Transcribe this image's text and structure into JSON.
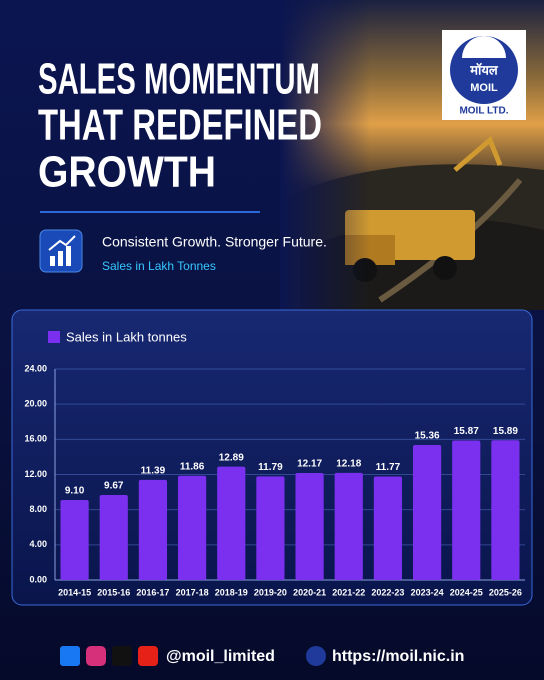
{
  "header": {
    "title_lines": [
      "SALES MOMENTUM",
      "THAT REDEFINED",
      "GROWTH"
    ],
    "tagline": "Consistent Growth. Stronger Future.",
    "subtitle": "Sales in Lakh Tonnes",
    "logo": {
      "hindi": "मॉयल",
      "name": "MOIL",
      "company": "MOIL LTD."
    }
  },
  "chart_data": {
    "type": "bar",
    "categories": [
      "2014-15",
      "2015-16",
      "2016-17",
      "2017-18",
      "2018-19",
      "2019-20",
      "2020-21",
      "2021-22",
      "2022-23",
      "2023-24",
      "2024-25",
      "2025-26"
    ],
    "series": [
      {
        "name": "Sales in Lakh tonnes",
        "color": "#7a30ee",
        "values": [
          9.1,
          9.67,
          11.39,
          11.86,
          12.89,
          11.79,
          12.17,
          12.18,
          11.77,
          15.36,
          15.87,
          15.89
        ],
        "value_labels": [
          "9.10",
          "9.67",
          "11.39",
          "11.86",
          "12.89",
          "11.79",
          "12.17",
          "12.18",
          "11.77",
          "15.36",
          "15.87",
          "15.89"
        ]
      }
    ],
    "ylim": [
      0,
      24
    ],
    "yticks": [
      {
        "value": 0,
        "label": "0.00"
      },
      {
        "value": 4,
        "label": "4.00"
      },
      {
        "value": 8,
        "label": "8.00"
      },
      {
        "value": 12,
        "label": "12.00"
      },
      {
        "value": 16,
        "label": "16.00"
      },
      {
        "value": 20,
        "label": "20.00"
      },
      {
        "value": 24,
        "label": "24.00"
      }
    ],
    "grid": true,
    "legend": "top-left"
  },
  "footer": {
    "handle": "@moil_limited",
    "url": "https://moil.nic.in"
  }
}
